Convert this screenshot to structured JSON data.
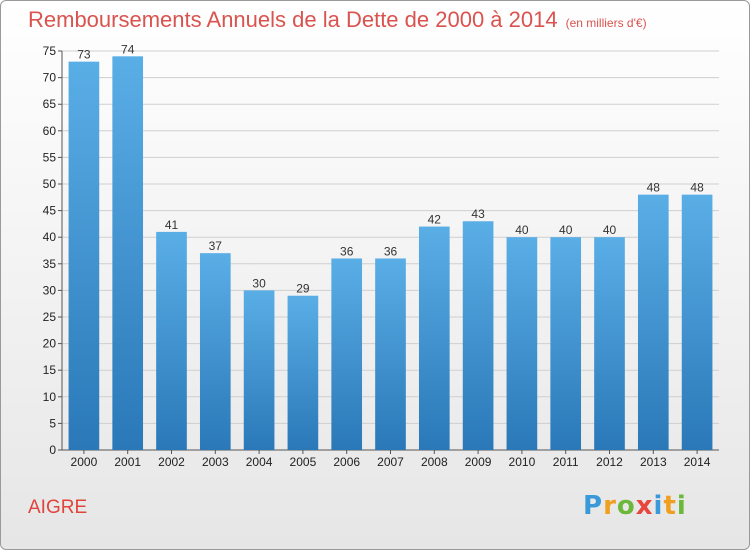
{
  "header": {
    "title": "Remboursements Annuels de la Dette de 2000 à 2014",
    "subtitle": "(en milliers d'€)"
  },
  "footer": {
    "commune": "AIGRE",
    "logo": "Proxiti"
  },
  "colors": {
    "bar_light": "#5aaee6",
    "bar_dark": "#2a78b8",
    "title": "#d9534f",
    "grid": "#cfcfcf"
  },
  "chart_data": {
    "type": "bar",
    "title": "Remboursements Annuels de la Dette de 2000 à 2014",
    "subtitle": "(en milliers d'€)",
    "xlabel": "",
    "ylabel": "",
    "categories": [
      "2000",
      "2001",
      "2002",
      "2003",
      "2004",
      "2005",
      "2006",
      "2007",
      "2008",
      "2009",
      "2010",
      "2011",
      "2012",
      "2013",
      "2014"
    ],
    "values": [
      73,
      74,
      41,
      37,
      30,
      29,
      36,
      36,
      42,
      43,
      40,
      40,
      40,
      48,
      48
    ],
    "ylim": [
      0,
      75
    ],
    "yticks": [
      0,
      5,
      10,
      15,
      20,
      25,
      30,
      35,
      40,
      45,
      50,
      55,
      60,
      65,
      70,
      75
    ],
    "grid": true,
    "legend": "none"
  }
}
